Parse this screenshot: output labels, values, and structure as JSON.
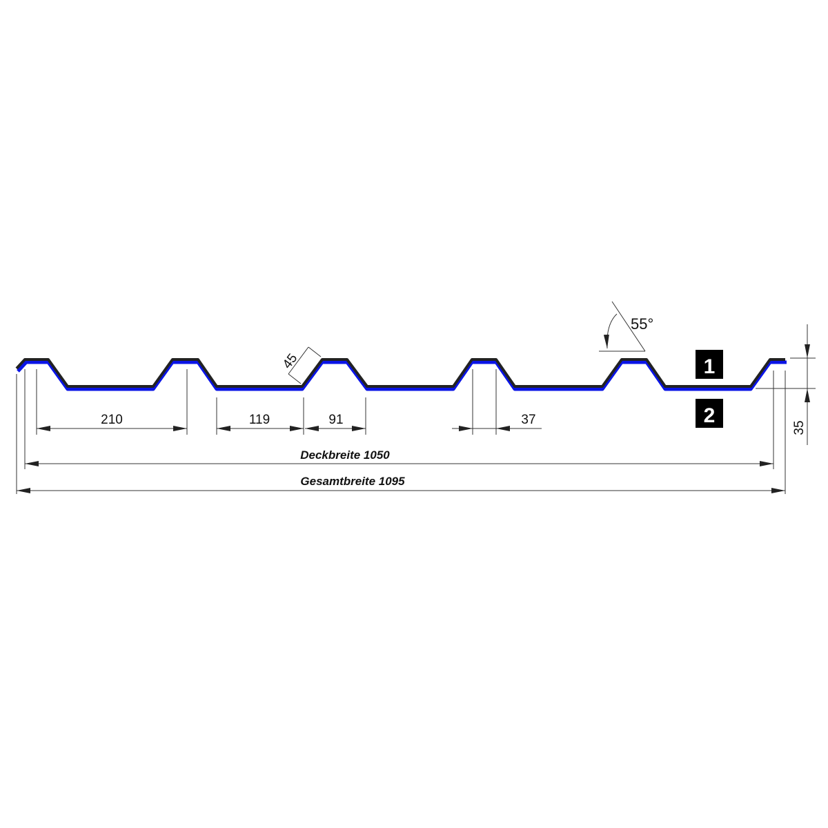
{
  "colors": {
    "profile_top": "#222222",
    "profile_bottom": "#0a14e6",
    "label_box": "#000000"
  },
  "dimensions": {
    "rib_pitch": "210",
    "valley_width": "119",
    "rib_base": "91",
    "rib_top": "37",
    "flank_length": "45",
    "angle": "55°",
    "height": "35",
    "cover_width": "Deckbreite 1050",
    "total_width": "Gesamtbreite 1095"
  },
  "labels": {
    "side_top": "1",
    "side_bottom": "2"
  }
}
